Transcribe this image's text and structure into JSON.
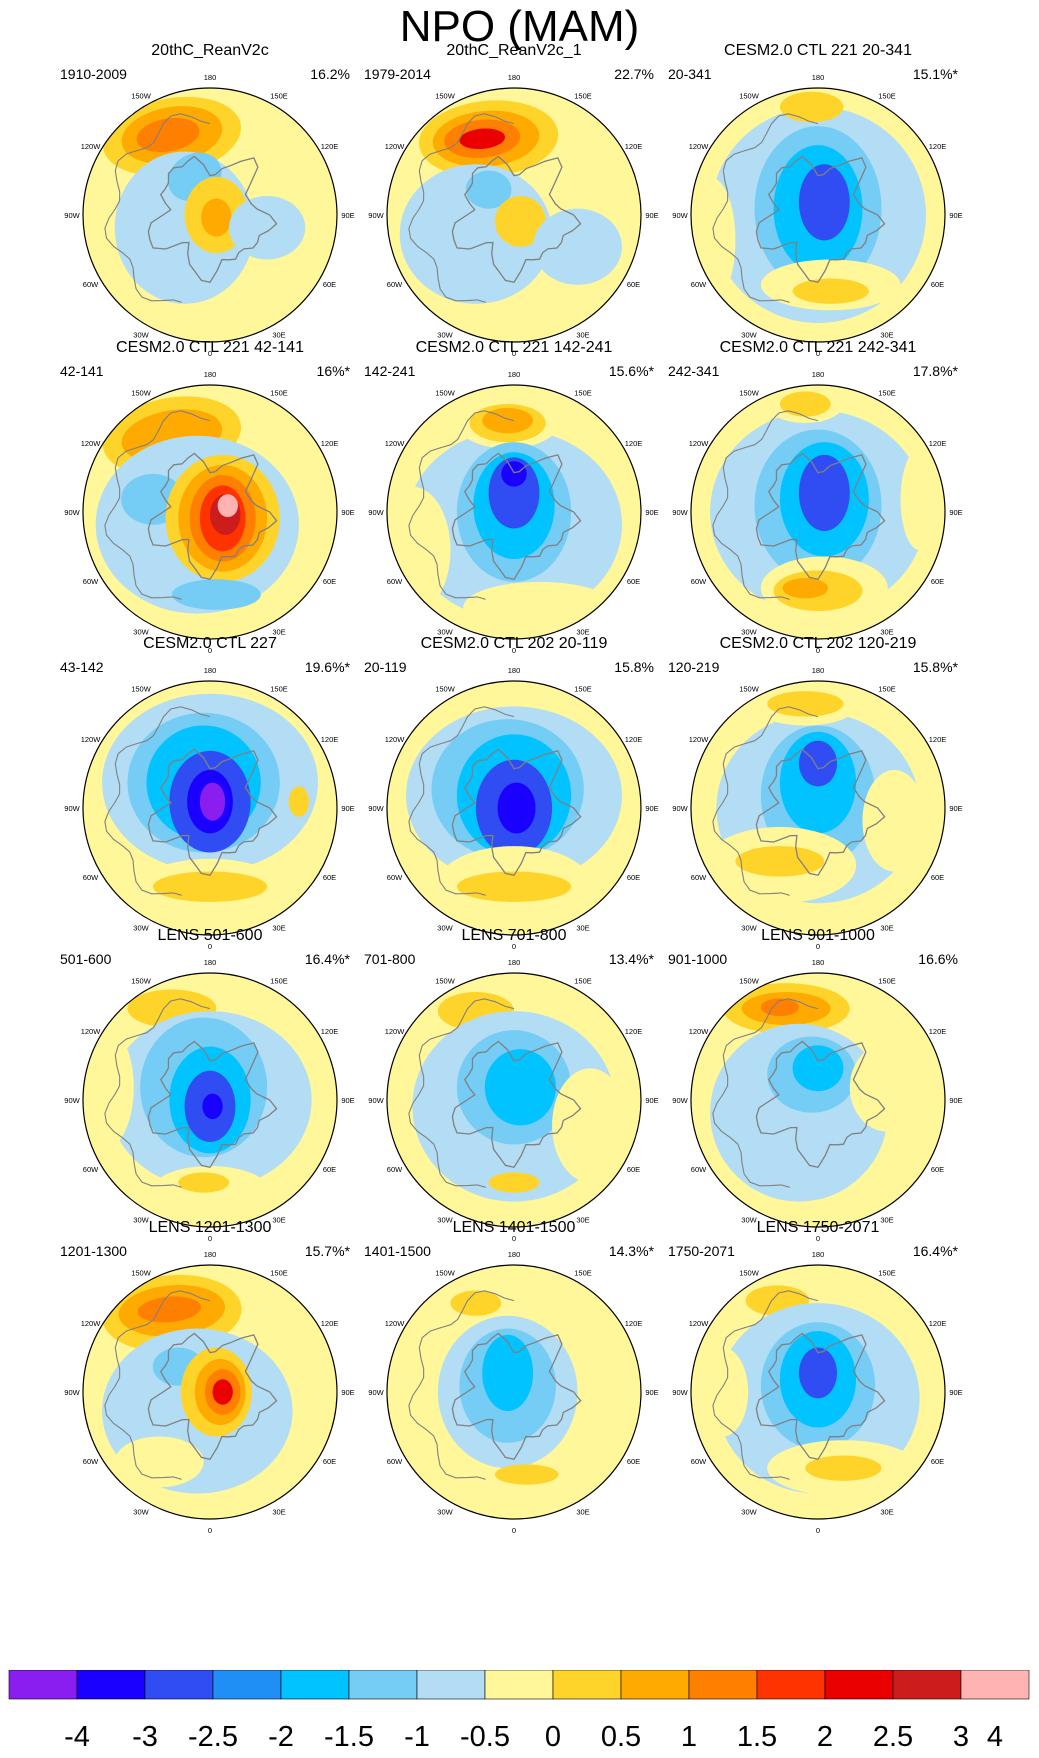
{
  "title": "NPO (MAM)",
  "colors": {
    "levels": [
      "#8a1ef0",
      "#1a00ff",
      "#2f4df2",
      "#1f8ff5",
      "#00c3ff",
      "#75ccf5",
      "#b2ddf5",
      "#fff799",
      "#ffd42a",
      "#ffaa00",
      "#ff7f00",
      "#ff3300",
      "#eb0000",
      "#cc1c1c",
      "#ffb3b3"
    ],
    "land": "#808080",
    "frame": "#000000"
  },
  "longitude_labels": [
    "180",
    "150E",
    "120E",
    "90E",
    "60E",
    "30E",
    "0",
    "30W",
    "60W",
    "90W",
    "120W",
    "150W"
  ],
  "chart_data": {
    "type": "heatmap",
    "colorbar": {
      "ticks": [
        "-4",
        "-3",
        "-2.5",
        "-2",
        "-1.5",
        "-1",
        "-0.5",
        "0",
        "0.5",
        "1",
        "1.5",
        "2",
        "2.5",
        "3",
        "4"
      ]
    },
    "panels": [
      {
        "title": "20thC_ReanV2c",
        "period": "1910-2009",
        "variance": "16.2%"
      },
      {
        "title": "20thC_ReanV2c_1",
        "period": "1979-2014",
        "variance": "22.7%"
      },
      {
        "title": "CESM2.0 CTL 221 20-341",
        "period": "20-341",
        "variance": "15.1%*"
      },
      {
        "title": "CESM2.0 CTL 221 42-141",
        "period": "42-141",
        "variance": "16%*"
      },
      {
        "title": "CESM2.0 CTL 221 142-241",
        "period": "142-241",
        "variance": "15.6%*"
      },
      {
        "title": "CESM2.0 CTL 221 242-341",
        "period": "242-341",
        "variance": "17.8%*"
      },
      {
        "title": "CESM2.0 CTL 227",
        "period": "43-142",
        "variance": "19.6%*"
      },
      {
        "title": "CESM2.0 CTL 202 20-119",
        "period": "20-119",
        "variance": "15.8%"
      },
      {
        "title": "CESM2.0 CTL 202 120-219",
        "period": "120-219",
        "variance": "15.8%*"
      },
      {
        "title": "LENS 501-600",
        "period": "501-600",
        "variance": "16.4%*"
      },
      {
        "title": "LENS 701-800",
        "period": "701-800",
        "variance": "13.4%*"
      },
      {
        "title": "LENS 901-1000",
        "period": "901-1000",
        "variance": "16.6%"
      },
      {
        "title": "LENS 1201-1300",
        "period": "1201-1300",
        "variance": "15.7%*"
      },
      {
        "title": "LENS 1401-1500",
        "period": "1401-1500",
        "variance": "14.3%*"
      },
      {
        "title": "LENS 1750-2071",
        "period": "1750-2071",
        "variance": "16.4%*"
      }
    ]
  }
}
